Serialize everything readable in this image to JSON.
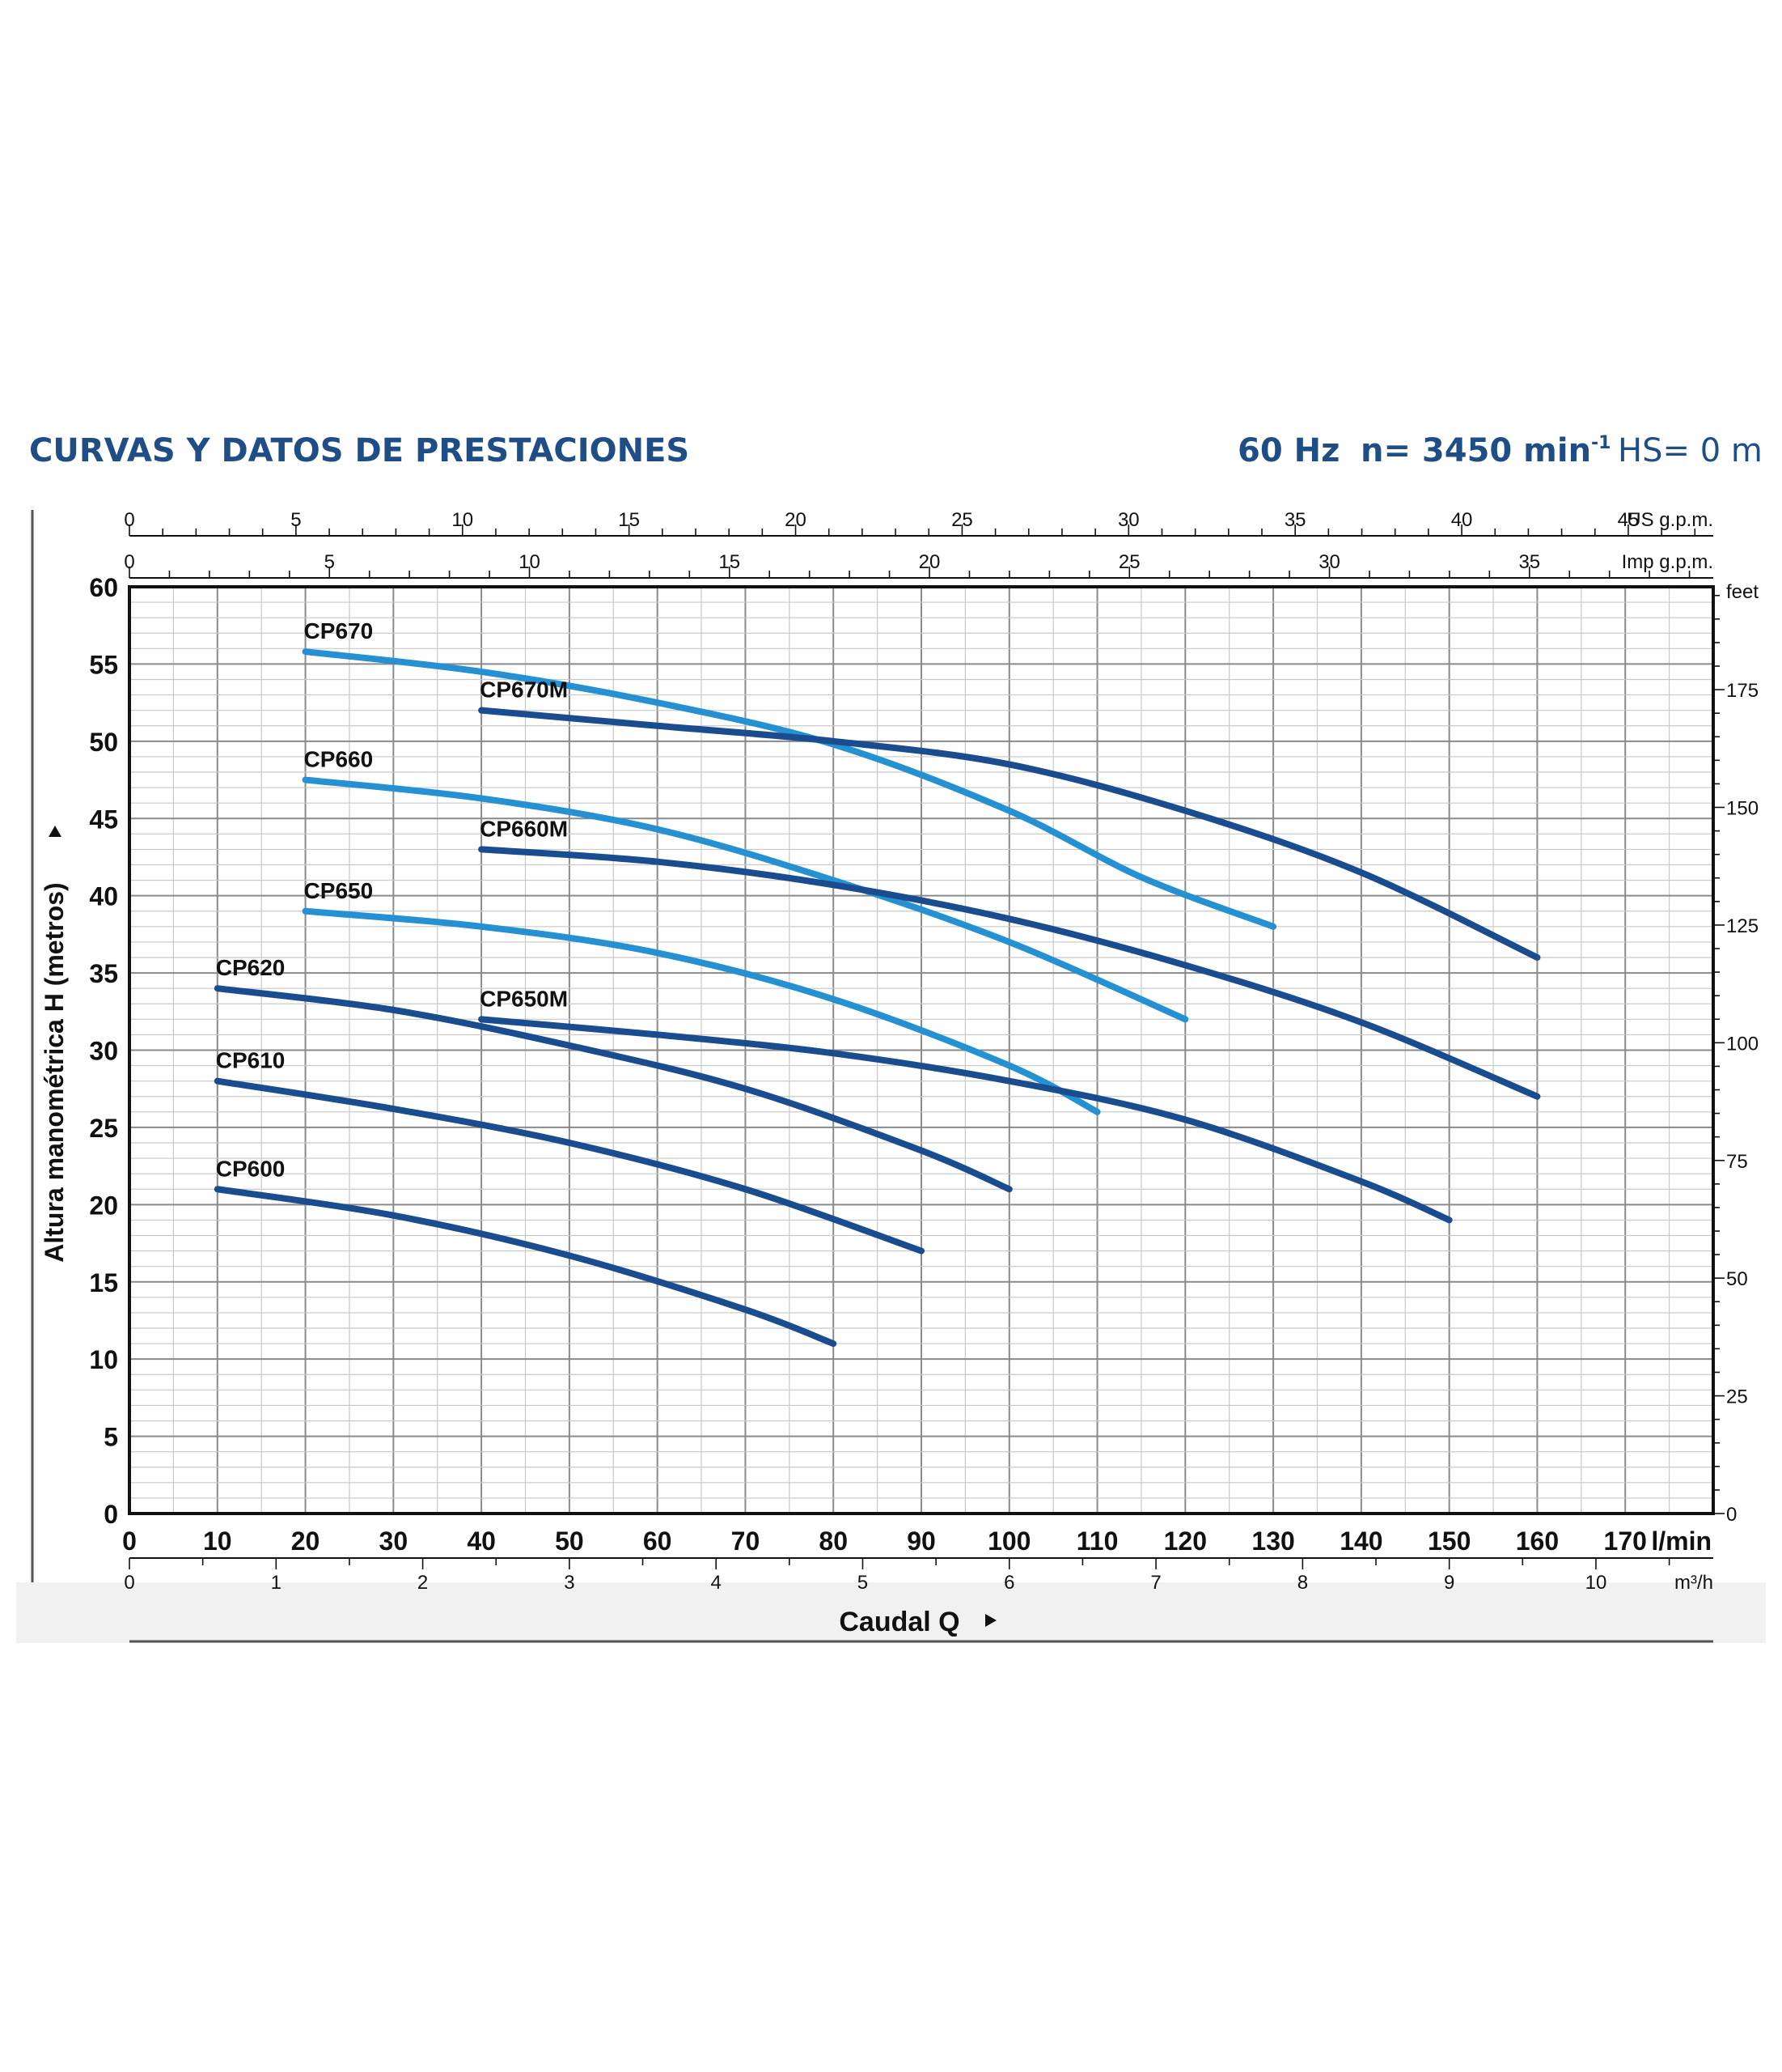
{
  "header": {
    "title": "CURVAS Y DATOS DE PRESTACIONES",
    "freq": "60 Hz",
    "speed": "n= 3450 min",
    "speed_exp": "-1",
    "hs": "HS= 0 m"
  },
  "chart_data": {
    "type": "line",
    "xlabel": "Caudal Q",
    "ylabel": "Altura manométrica H (metros)",
    "xlim": [
      0,
      180
    ],
    "ylim": [
      0,
      60
    ],
    "x_unit": "l/min",
    "x_ticks": [
      0,
      10,
      20,
      30,
      40,
      50,
      60,
      70,
      80,
      90,
      100,
      110,
      120,
      130,
      140,
      150,
      160,
      170
    ],
    "y_ticks": [
      0,
      5,
      10,
      15,
      20,
      25,
      30,
      35,
      40,
      45,
      50,
      55,
      60
    ],
    "grid": true,
    "secondary_axes": {
      "us_gpm": {
        "unit": "US g.p.m.",
        "ticks": [
          0,
          5,
          10,
          15,
          20,
          25,
          30,
          35,
          40,
          45
        ]
      },
      "imp_gpm": {
        "unit": "Imp g.p.m.",
        "ticks": [
          0,
          5,
          10,
          15,
          20,
          25,
          30,
          35
        ]
      },
      "m3h": {
        "unit": "m³/h",
        "ticks": [
          0,
          1,
          2,
          3,
          4,
          5,
          6,
          7,
          8,
          9,
          10
        ]
      },
      "feet": {
        "unit": "feet",
        "ticks": [
          0,
          25,
          50,
          75,
          100,
          125,
          150,
          175
        ]
      }
    },
    "series": [
      {
        "name": "CP670",
        "color": "#2591d2",
        "x": [
          20,
          40,
          60,
          80,
          100,
          115,
          130
        ],
        "y": [
          55.8,
          54.5,
          52.5,
          49.8,
          45.5,
          41.2,
          38
        ]
      },
      {
        "name": "CP670M",
        "color": "#1a4d8f",
        "x": [
          40,
          60,
          80,
          100,
          120,
          140,
          160
        ],
        "y": [
          52,
          51,
          50,
          48.5,
          45.5,
          41.5,
          36
        ]
      },
      {
        "name": "CP660",
        "color": "#2591d2",
        "x": [
          20,
          40,
          60,
          80,
          100,
          120
        ],
        "y": [
          47.5,
          46.3,
          44.3,
          41,
          37,
          32
        ]
      },
      {
        "name": "CP660M",
        "color": "#1a4d8f",
        "x": [
          40,
          60,
          80,
          100,
          120,
          140,
          160
        ],
        "y": [
          43,
          42.2,
          40.7,
          38.5,
          35.5,
          31.8,
          27
        ]
      },
      {
        "name": "CP650",
        "color": "#2591d2",
        "x": [
          20,
          40,
          60,
          80,
          100,
          110
        ],
        "y": [
          39,
          38,
          36.3,
          33.3,
          29,
          26
        ]
      },
      {
        "name": "CP650M",
        "color": "#1a4d8f",
        "x": [
          40,
          60,
          80,
          100,
          120,
          140,
          150
        ],
        "y": [
          32,
          31,
          29.8,
          28,
          25.5,
          21.5,
          19
        ]
      },
      {
        "name": "CP620",
        "color": "#1a4d8f",
        "x": [
          10,
          30,
          50,
          70,
          90,
          100
        ],
        "y": [
          34,
          32.6,
          30.3,
          27.5,
          23.5,
          21
        ]
      },
      {
        "name": "CP610",
        "color": "#1a4d8f",
        "x": [
          10,
          30,
          50,
          70,
          90
        ],
        "y": [
          28,
          26.2,
          24,
          21,
          17
        ]
      },
      {
        "name": "CP600",
        "color": "#1a4d8f",
        "x": [
          10,
          30,
          50,
          70,
          80
        ],
        "y": [
          21,
          19.3,
          16.7,
          13.2,
          11
        ]
      }
    ]
  }
}
